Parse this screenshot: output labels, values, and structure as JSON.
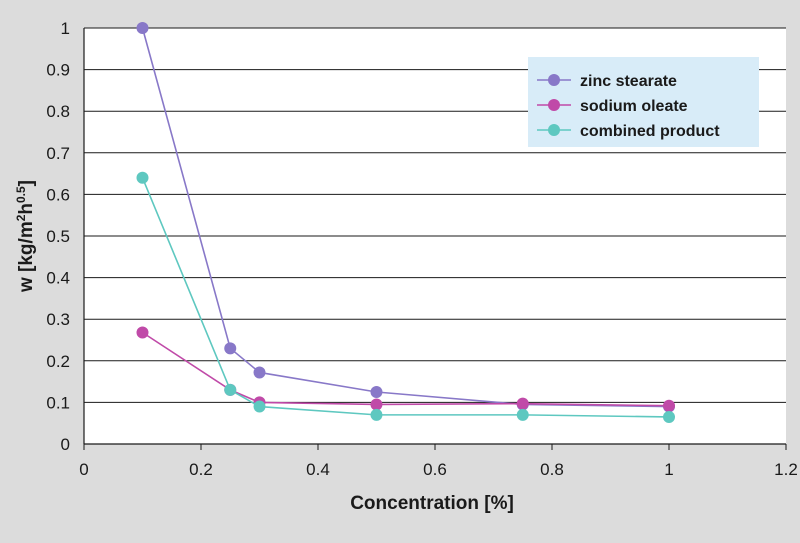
{
  "chart_data": {
    "type": "line",
    "title": "",
    "xlabel": "Concentration [%]",
    "ylabel": "w [kg/m²h⁰·⁵]",
    "ylabel_parts": {
      "prefix": "w [kg/m",
      "sup1": "2",
      "mid": "h",
      "sup2": "0.5",
      "suffix": "]"
    },
    "xlim": [
      0,
      1.2
    ],
    "ylim": [
      0,
      1
    ],
    "x_ticks": [
      "0",
      "0.2",
      "0.4",
      "0.6",
      "0.8",
      "1",
      "1.2"
    ],
    "y_ticks": [
      "0",
      "0.1",
      "0.2",
      "0.3",
      "0.4",
      "0.5",
      "0.6",
      "0.7",
      "0.8",
      "0.9",
      "1"
    ],
    "grid": "horizontal",
    "legend_position": "top-right",
    "series": [
      {
        "name": "zinc stearate",
        "color": "#8878c8",
        "x": [
          0.1,
          0.25,
          0.3,
          0.5,
          0.75,
          1.0
        ],
        "y": [
          1.0,
          0.23,
          0.172,
          0.125,
          0.095,
          0.09
        ]
      },
      {
        "name": "sodium oleate",
        "color": "#c04aa8",
        "x": [
          0.1,
          0.25,
          0.3,
          0.5,
          0.75,
          1.0
        ],
        "y": [
          0.268,
          0.13,
          0.1,
          0.095,
          0.097,
          0.092
        ]
      },
      {
        "name": "combined product",
        "color": "#5ec8c0",
        "x": [
          0.1,
          0.25,
          0.3,
          0.5,
          0.75,
          1.0
        ],
        "y": [
          0.64,
          0.13,
          0.09,
          0.07,
          0.07,
          0.065
        ]
      }
    ]
  }
}
